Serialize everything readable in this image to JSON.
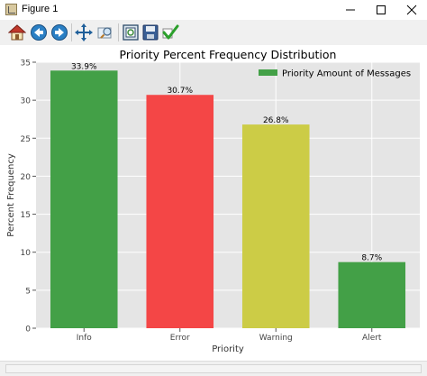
{
  "window": {
    "title": "Figure 1"
  },
  "toolbar": {
    "buttons": [
      {
        "name": "home-button",
        "icon": "home-icon"
      },
      {
        "name": "back-button",
        "icon": "arrow-left-icon"
      },
      {
        "name": "forward-button",
        "icon": "arrow-right-icon"
      },
      {
        "name": "pan-button",
        "icon": "move-arrows-icon"
      },
      {
        "name": "zoom-button",
        "icon": "zoom-rect-icon"
      },
      {
        "name": "subplots-button",
        "icon": "subplots-config-icon"
      },
      {
        "name": "save-button",
        "icon": "floppy-disk-icon"
      },
      {
        "name": "edit-button",
        "icon": "checkmark-icon"
      }
    ]
  },
  "colors": {
    "green": "#43a047",
    "red": "#f44646",
    "yellow": "#cccc46",
    "plot_bg": "#e5e5e5"
  },
  "chart_data": {
    "type": "bar",
    "title": "Priority Percent Frequency Distribution",
    "xlabel": "Priority",
    "ylabel": "Percent Frequency",
    "categories": [
      "Info",
      "Error",
      "Warning",
      "Alert"
    ],
    "values": [
      33.9,
      30.7,
      26.8,
      8.7
    ],
    "data_labels": [
      "33.9%",
      "30.7%",
      "26.8%",
      "8.7%"
    ],
    "bar_colors": [
      "#43a047",
      "#f44646",
      "#cccc46",
      "#43a047"
    ],
    "ylim": [
      0,
      35
    ],
    "yticks": [
      0,
      5,
      10,
      15,
      20,
      25,
      30,
      35
    ],
    "grid": true,
    "legend": {
      "label": "Priority Amount of Messages",
      "color": "#43a047",
      "position": "top-right"
    }
  }
}
